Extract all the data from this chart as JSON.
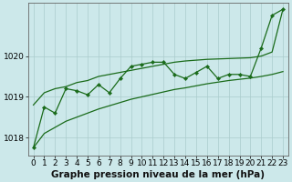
{
  "bg_color": "#cce8ea",
  "grid_color": "#aacccc",
  "line_color": "#1a6b1a",
  "xlabel": "Graphe pression niveau de la mer (hPa)",
  "xlim": [
    -0.5,
    23.5
  ],
  "ylim": [
    1017.55,
    1021.3
  ],
  "yticks": [
    1018,
    1019,
    1020
  ],
  "xticks": [
    0,
    1,
    2,
    3,
    4,
    5,
    6,
    7,
    8,
    9,
    10,
    11,
    12,
    13,
    14,
    15,
    16,
    17,
    18,
    19,
    20,
    21,
    22,
    23
  ],
  "main_data": [
    1017.75,
    1018.75,
    1018.6,
    1019.2,
    1019.15,
    1019.05,
    1019.3,
    1019.1,
    1019.45,
    1019.75,
    1019.8,
    1019.85,
    1019.85,
    1019.55,
    1019.45,
    1019.6,
    1019.75,
    1019.45,
    1019.55,
    1019.55,
    1019.5,
    1020.2,
    1021.0,
    1021.15
  ],
  "upper_line": [
    1018.8,
    1019.1,
    1019.2,
    1019.25,
    1019.35,
    1019.4,
    1019.5,
    1019.55,
    1019.6,
    1019.65,
    1019.7,
    1019.75,
    1019.8,
    1019.85,
    1019.88,
    1019.9,
    1019.92,
    1019.93,
    1019.94,
    1019.95,
    1019.96,
    1020.0,
    1020.1,
    1021.15
  ],
  "lower_line": [
    1017.75,
    1018.1,
    1018.25,
    1018.4,
    1018.5,
    1018.6,
    1018.7,
    1018.78,
    1018.86,
    1018.94,
    1019.0,
    1019.06,
    1019.12,
    1019.18,
    1019.22,
    1019.27,
    1019.32,
    1019.36,
    1019.4,
    1019.43,
    1019.46,
    1019.5,
    1019.55,
    1019.62
  ],
  "tick_fontsize": 6.5,
  "xlabel_fontsize": 7.5
}
